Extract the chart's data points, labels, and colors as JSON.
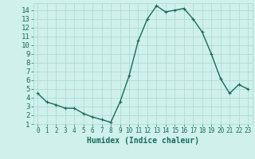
{
  "x": [
    0,
    1,
    2,
    3,
    4,
    5,
    6,
    7,
    8,
    9,
    10,
    11,
    12,
    13,
    14,
    15,
    16,
    17,
    18,
    19,
    20,
    21,
    22,
    23
  ],
  "y": [
    4.5,
    3.5,
    3.2,
    2.8,
    2.8,
    2.2,
    1.8,
    1.5,
    1.2,
    3.5,
    6.5,
    10.5,
    13.0,
    14.5,
    13.8,
    14.0,
    14.2,
    13.0,
    11.5,
    9.0,
    6.2,
    4.5,
    5.5,
    5.0
  ],
  "line_color": "#1a6b5a",
  "marker": "+",
  "marker_size": 3,
  "xlabel": "Humidex (Indice chaleur)",
  "ylim": [
    1,
    14.8
  ],
  "xlim": [
    -0.5,
    23.5
  ],
  "yticks": [
    1,
    2,
    3,
    4,
    5,
    6,
    7,
    8,
    9,
    10,
    11,
    12,
    13,
    14
  ],
  "xticks": [
    0,
    1,
    2,
    3,
    4,
    5,
    6,
    7,
    8,
    9,
    10,
    11,
    12,
    13,
    14,
    15,
    16,
    17,
    18,
    19,
    20,
    21,
    22,
    23
  ],
  "bg_color": "#cff0eb",
  "grid_color": "#a8d8d0",
  "tick_color": "#1a6b5a",
  "label_color": "#1a6b5a",
  "xlabel_fontsize": 7,
  "tick_fontsize_x": 5.5,
  "tick_fontsize_y": 6.5,
  "line_width": 1.0
}
